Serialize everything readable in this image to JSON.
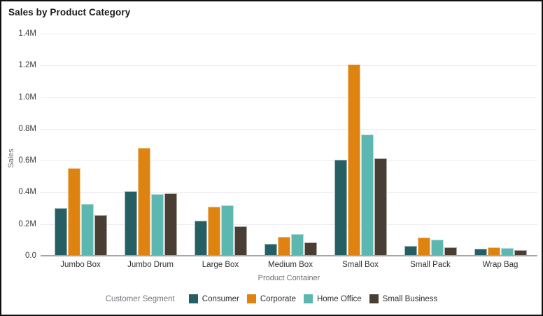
{
  "chart_data": {
    "type": "bar",
    "title": "Sales by Product Category",
    "xlabel": "Product Container",
    "ylabel": "Sales",
    "categories": [
      "Jumbo Box",
      "Jumbo Drum",
      "Large Box",
      "Medium Box",
      "Small Box",
      "Small Pack",
      "Wrap Bag"
    ],
    "series": [
      {
        "name": "Consumer",
        "color": "#265F63",
        "values": [
          0.3,
          0.405,
          0.22,
          0.075,
          0.605,
          0.06,
          0.045
        ]
      },
      {
        "name": "Corporate",
        "color": "#DE830F",
        "values": [
          0.55,
          0.68,
          0.31,
          0.12,
          1.205,
          0.115,
          0.055
        ]
      },
      {
        "name": "Home Office",
        "color": "#5CB7B1",
        "values": [
          0.325,
          0.39,
          0.32,
          0.135,
          0.765,
          0.1,
          0.05
        ]
      },
      {
        "name": "Small Business",
        "color": "#493E33",
        "values": [
          0.255,
          0.395,
          0.185,
          0.085,
          0.615,
          0.055,
          0.035
        ]
      }
    ],
    "value_unit": "M",
    "ylim": [
      0,
      1.4
    ],
    "ytick_labels": [
      "1.4M",
      "1.2M",
      "1.0M",
      "0.8M",
      "0.6M",
      "0.4M",
      "0.2M",
      "0.0"
    ],
    "grid": true,
    "legend_title": "Customer Segment",
    "legend_position": "bottom",
    "colors": {
      "gridline": "#ececf2",
      "baseline": "#a6a6a6",
      "tick_label": "#3c3c41",
      "axis_title": "#6e6e76"
    }
  }
}
